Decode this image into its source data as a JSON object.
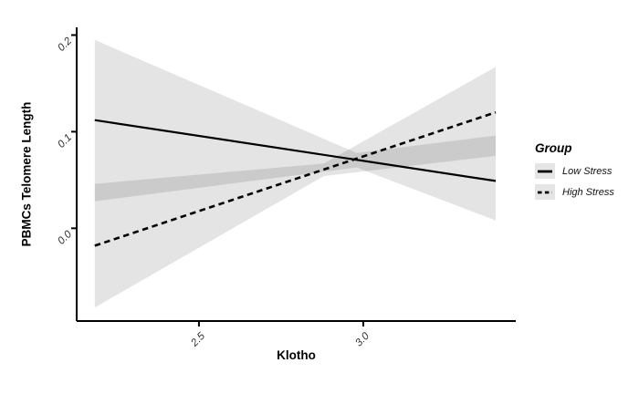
{
  "figure": {
    "background": "#ffffff",
    "axis_color": "#000000",
    "tick_label_color": "#303030"
  },
  "chart_data": {
    "type": "line",
    "title": "",
    "xlabel": "Klotho",
    "ylabel": "PBMCs Telomere Length",
    "x_axis": {
      "ticks": [
        2.5,
        3.0
      ],
      "tick_labels": [
        "2.5",
        "3.0"
      ],
      "range": [
        2.128,
        3.464
      ]
    },
    "y_axis": {
      "ticks": [
        0.0,
        0.1,
        0.2
      ],
      "tick_labels": [
        "0.0",
        "0.1",
        "0.2"
      ],
      "range": [
        -0.096,
        0.208
      ]
    },
    "grid": "off",
    "ribbon_color": "rgba(0,0,0,0.105)",
    "legend": {
      "title": "Group",
      "position": "right",
      "entries": [
        {
          "label": "Low Stress",
          "line": "solid"
        },
        {
          "label": "High Stress",
          "line": "dashed"
        }
      ]
    },
    "series": [
      {
        "name": "Low Stress",
        "style": "solid",
        "color": "#000000",
        "x": [
          2.183,
          3.403
        ],
        "y": [
          0.112,
          0.049
        ],
        "ci": {
          "x": [
            2.183,
            2.98,
            3.403
          ],
          "upper": [
            0.195,
            0.078,
            0.096
          ],
          "lower": [
            0.028,
            0.063,
            0.008
          ]
        }
      },
      {
        "name": "High Stress",
        "style": "dashed",
        "color": "#000000",
        "x": [
          2.183,
          3.403
        ],
        "y": [
          -0.018,
          0.12
        ],
        "ci": {
          "x": [
            2.183,
            2.88,
            3.403
          ],
          "upper": [
            0.046,
            0.067,
            0.167
          ],
          "lower": [
            -0.082,
            0.054,
            0.075
          ]
        }
      }
    ]
  }
}
